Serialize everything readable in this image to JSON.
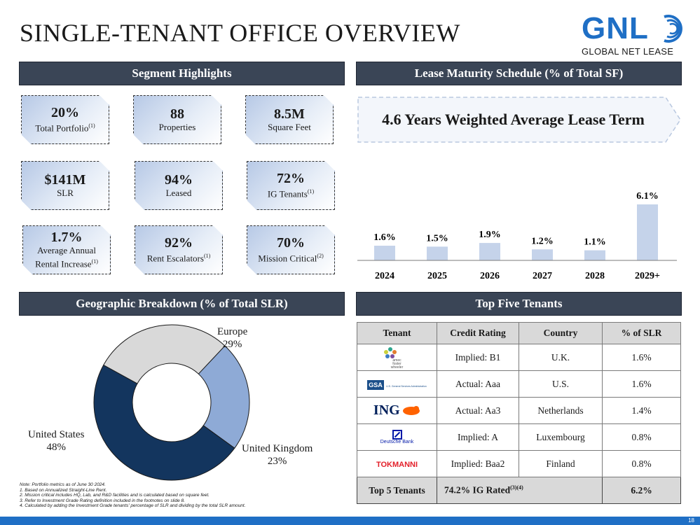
{
  "title": "SINGLE-TENANT OFFICE OVERVIEW",
  "logo": {
    "brand": "GNL",
    "tagline": "GLOBAL NET LEASE",
    "colors": {
      "blue": "#1f6fc5"
    }
  },
  "segment_highlights": {
    "header": "Segment Highlights",
    "cards": [
      {
        "value": "20%",
        "label": "Total Portfolio",
        "sup": "(1)"
      },
      {
        "value": "88",
        "label": "Properties",
        "sup": ""
      },
      {
        "value": "8.5M",
        "label": "Square Feet",
        "sup": ""
      },
      {
        "value": "$141M",
        "label": "SLR",
        "sup": ""
      },
      {
        "value": "94%",
        "label": "Leased",
        "sup": ""
      },
      {
        "value": "72%",
        "label": "IG Tenants",
        "sup": "(1)"
      },
      {
        "value": "1.7%",
        "label": "Average Annual",
        "label2": "Rental Increase",
        "sup": "(1)"
      },
      {
        "value": "92%",
        "label": "Rent Escalators",
        "sup": "(1)"
      },
      {
        "value": "70%",
        "label": "Mission Critical",
        "sup": "(2)"
      }
    ]
  },
  "lease_maturity": {
    "header": "Lease Maturity Schedule (% of Total SF)",
    "wale": "4.6 Years Weighted Average Lease Term"
  },
  "chart_data": [
    {
      "type": "bar",
      "categories": [
        "2024",
        "2025",
        "2026",
        "2027",
        "2028",
        "2029+"
      ],
      "values": [
        1.6,
        1.5,
        1.9,
        1.2,
        1.1,
        6.1
      ],
      "value_labels": [
        "1.6%",
        "1.5%",
        "1.9%",
        "1.2%",
        "1.1%",
        "6.1%"
      ],
      "ylim": [
        0,
        6.1
      ],
      "grid": false,
      "bar_color": "#c5d3ea"
    },
    {
      "type": "pie",
      "donut": true,
      "labels": [
        "Europe",
        "United Kingdom",
        "United States"
      ],
      "values": [
        29,
        23,
        48
      ],
      "value_labels": [
        "29%",
        "23%",
        "48%"
      ],
      "colors": [
        "#d9d9d9",
        "#8eaad6",
        "#13355e"
      ]
    }
  ],
  "geo": {
    "header": "Geographic Breakdown (% of Total SLR)"
  },
  "tenants": {
    "header": "Top Five Tenants",
    "columns": [
      "Tenant",
      "Credit Rating",
      "Country",
      "% of SLR"
    ],
    "rows": [
      {
        "logo": "amec foster wheeler",
        "logo_lines": [
          "amec",
          "foster",
          "wheeler"
        ],
        "rating": "Implied: B1",
        "country": "U.K.",
        "slr": "1.6%"
      },
      {
        "logo": "GSA",
        "logo_small": "U.S. General Services Administration",
        "rating": "Actual: Aaa",
        "country": "U.S.",
        "slr": "1.6%"
      },
      {
        "logo": "ING",
        "rating": "Actual: Aa3",
        "country": "Netherlands",
        "slr": "1.4%"
      },
      {
        "logo": "Deutsche Bank",
        "rating": "Implied: A",
        "country": "Luxembourg",
        "slr": "0.8%"
      },
      {
        "logo": "TOKMANNI",
        "rating": "Implied: Baa2",
        "country": "Finland",
        "slr": "0.8%"
      }
    ],
    "total": {
      "label": "Top 5 Tenants",
      "ig": "74.2% IG Rated",
      "ig_sup": "(3)(4)",
      "slr": "6.2%"
    }
  },
  "notes": [
    "Note: Portfolio metrics as of June 30 2024.",
    "1.     Based on Annualized Straight-Line Rent.",
    "2.     Mission critical includes HQ, Lab, and R&D facilities and is calculated based on square feet.",
    "3.     Refer to Investment Grade Rating definition included in the footnotes on slide 8.",
    "4.     Calculated by adding the Investment Grade tenants' percentage of SLR and dividing by the total SLR amount."
  ],
  "page_number": "18"
}
